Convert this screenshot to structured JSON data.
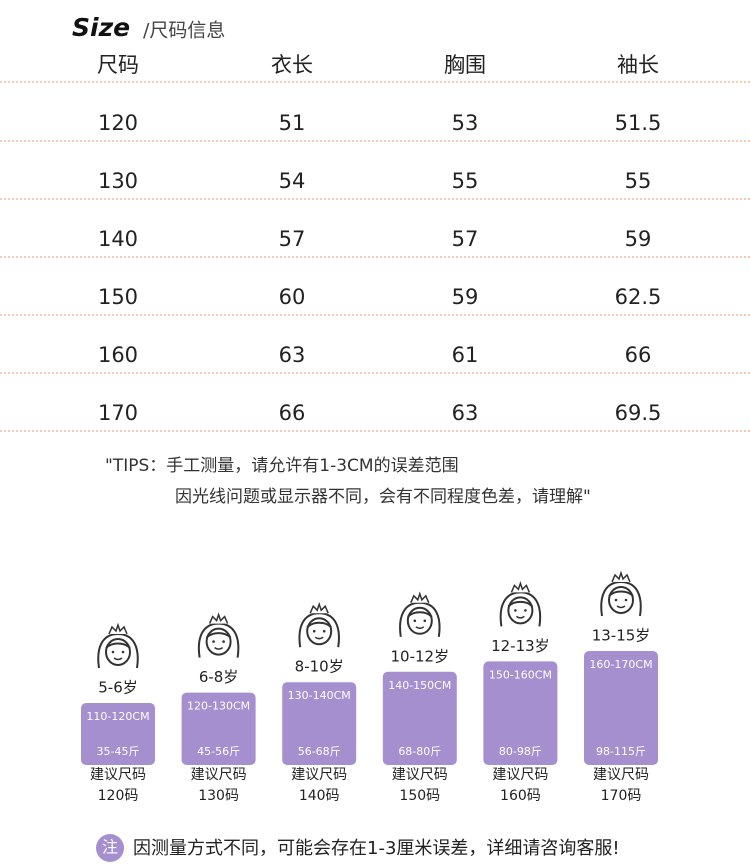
{
  "header": {
    "title": "Size",
    "subtitle": "/尺码信息"
  },
  "table": {
    "columns": [
      "尺码",
      "衣长",
      "胸围",
      "袖长"
    ],
    "rows": [
      [
        120,
        51,
        53,
        51.5
      ],
      [
        130,
        54,
        55,
        55
      ],
      [
        140,
        57,
        57,
        59
      ],
      [
        150,
        60,
        59,
        62.5
      ],
      [
        160,
        63,
        61,
        66
      ],
      [
        170,
        66,
        63,
        69.5
      ]
    ]
  },
  "tips": [
    "\"TIPS：手工测量，请允许有1-3CM的误差范围",
    "因光线问题或显示器不同，会有不同程度色差，请理解\""
  ],
  "cards": [
    {
      "age": "5-6岁",
      "height": "110-120CM",
      "weight": "35-45斤",
      "label": "建议尺码",
      "size": "120码"
    },
    {
      "age": "6-8岁",
      "height": "120-130CM",
      "weight": "45-56斤",
      "label": "建议尺码",
      "size": "130码"
    },
    {
      "age": "8-10岁",
      "height": "130-140CM",
      "weight": "56-68斤",
      "label": "建议尺码",
      "size": "140码"
    },
    {
      "age": "10-12岁",
      "height": "140-150CM",
      "weight": "68-80斤",
      "label": "建议尺码",
      "size": "150码"
    },
    {
      "age": "12-13岁",
      "height": "150-160CM",
      "weight": "80-98斤",
      "label": "建议尺码",
      "size": "160码"
    },
    {
      "age": "13-15岁",
      "height": "160-170CM",
      "weight": "98-115斤",
      "label": "建议尺码",
      "size": "170码"
    }
  ],
  "note": {
    "badge": "注",
    "text": "因测量方式不同，可能会存在1-3厘米误差，详细请咨询客服!"
  }
}
